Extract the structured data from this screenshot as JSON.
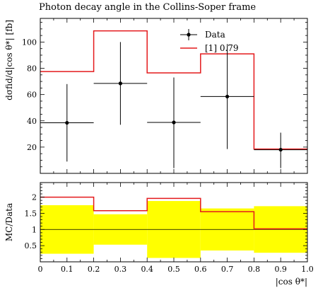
{
  "chart_data": {
    "type": "line",
    "title": "Photon decay angle in the Collins-Soper frame",
    "xlabel": "|cos θ*|",
    "ylabel": "dσfid/d|cos θ*| [fb]",
    "ratio_ylabel": "MC/Data",
    "bins": [
      0.0,
      0.2,
      0.4,
      0.6,
      0.8,
      1.0
    ],
    "xlim": [
      0.0,
      1.0
    ],
    "ylim": [
      0,
      118
    ],
    "ratio_ylim": [
      0,
      2.45
    ],
    "x_ticks": [
      0,
      0.1,
      0.2,
      0.3,
      0.4,
      0.5,
      0.6,
      0.7,
      0.8,
      0.9,
      1.0
    ],
    "x_tick_labels": [
      "0",
      "0.1",
      "0.2",
      "0.3",
      "0.4",
      "0.5",
      "0.6",
      "0.7",
      "0.8",
      "0.9",
      "1.0"
    ],
    "y_ticks": [
      20,
      40,
      60,
      80,
      100
    ],
    "ratio_y_ticks": [
      0.5,
      1,
      1.5,
      2
    ],
    "ratio_y_tick_labels": [
      "0.5",
      "1",
      "1.5",
      "2"
    ],
    "legend_position": "top-right",
    "series": [
      {
        "name": "Data",
        "kind": "points",
        "x": [
          0.1,
          0.3,
          0.5,
          0.7,
          0.9
        ],
        "values": [
          38.5,
          68.5,
          38.8,
          58.5,
          18.0
        ],
        "err_low": [
          29.5,
          31.5,
          34.8,
          40.0,
          14.0
        ],
        "err_high": [
          29.5,
          31.5,
          34.2,
          40.0,
          13.0
        ],
        "color": "#000000"
      },
      {
        "name": "[1] 0.79",
        "kind": "histogram",
        "values": [
          77.5,
          108.5,
          76.5,
          91.0,
          18.5
        ],
        "color": "#e41a1c"
      }
    ],
    "ratio": {
      "values": [
        2.0,
        1.58,
        1.96,
        1.55,
        1.02
      ],
      "band_low": [
        0.25,
        0.53,
        0.12,
        0.35,
        0.28
      ],
      "band_high": [
        1.75,
        1.47,
        1.88,
        1.65,
        1.72
      ],
      "band_color": "#ffff00",
      "line_color": "#e41a1c"
    }
  }
}
